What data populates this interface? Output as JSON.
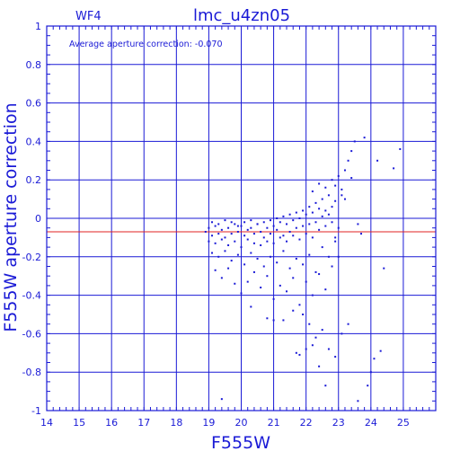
{
  "chart_data": {
    "type": "scatter",
    "title": "lmc_u4zn05",
    "corner_label": "WF4",
    "annotation": "Average aperture correction:  -0.070",
    "xlabel": "F555W",
    "ylabel": "F555W  aperture  correction",
    "xlim": [
      14,
      26
    ],
    "ylim": [
      -1,
      1
    ],
    "x_ticks": [
      "14",
      "15",
      "16",
      "17",
      "18",
      "19",
      "20",
      "21",
      "22",
      "23",
      "24",
      "25"
    ],
    "y_ticks": [
      "1",
      "0.8",
      "0.6",
      "0.4",
      "0.2",
      "0",
      "-0.2",
      "-0.4",
      "-0.6",
      "-0.8",
      "-1"
    ],
    "grid": true,
    "average_correction": -0.07,
    "reference_line": 0,
    "colors": {
      "axes": "#1a1ad6",
      "points": "#1a1ad6",
      "average_line": "#e02020"
    },
    "points": [
      [
        18.9,
        -0.07
      ],
      [
        19.0,
        -0.05
      ],
      [
        19.1,
        -0.09
      ],
      [
        19.2,
        -0.04
      ],
      [
        19.3,
        -0.08
      ],
      [
        19.4,
        -0.06
      ],
      [
        19.5,
        -0.1
      ],
      [
        19.6,
        -0.05
      ],
      [
        19.7,
        -0.08
      ],
      [
        19.8,
        -0.03
      ],
      [
        19.9,
        -0.07
      ],
      [
        20.0,
        -0.04
      ],
      [
        20.1,
        -0.09
      ],
      [
        20.2,
        -0.06
      ],
      [
        20.3,
        -0.05
      ],
      [
        20.4,
        -0.08
      ],
      [
        20.5,
        -0.03
      ],
      [
        20.6,
        -0.07
      ],
      [
        20.7,
        -0.1
      ],
      [
        20.8,
        -0.05
      ],
      [
        20.9,
        -0.08
      ],
      [
        21.0,
        -0.04
      ],
      [
        21.1,
        -0.06
      ],
      [
        21.2,
        -0.02
      ],
      [
        21.3,
        -0.09
      ],
      [
        21.4,
        -0.03
      ],
      [
        21.5,
        -0.07
      ],
      [
        21.6,
        -0.01
      ],
      [
        21.7,
        -0.05
      ],
      [
        21.8,
        0.0
      ],
      [
        21.9,
        -0.04
      ],
      [
        22.0,
        0.02
      ],
      [
        22.1,
        -0.03
      ],
      [
        22.2,
        0.03
      ],
      [
        22.3,
        -0.02
      ],
      [
        22.4,
        0.05
      ],
      [
        22.5,
        0.01
      ],
      [
        22.6,
        0.04
      ],
      [
        22.7,
        0.02
      ],
      [
        22.8,
        0.06
      ],
      [
        19.0,
        -0.12
      ],
      [
        19.2,
        -0.13
      ],
      [
        19.4,
        -0.11
      ],
      [
        19.6,
        -0.14
      ],
      [
        19.8,
        -0.12
      ],
      [
        20.0,
        -0.15
      ],
      [
        20.2,
        -0.11
      ],
      [
        20.4,
        -0.13
      ],
      [
        20.6,
        -0.14
      ],
      [
        20.8,
        -0.12
      ],
      [
        21.0,
        -0.13
      ],
      [
        21.2,
        -0.1
      ],
      [
        21.4,
        -0.12
      ],
      [
        21.6,
        -0.09
      ],
      [
        21.8,
        -0.11
      ],
      [
        22.0,
        -0.08
      ],
      [
        22.2,
        -0.1
      ],
      [
        22.4,
        -0.06
      ],
      [
        22.6,
        -0.04
      ],
      [
        22.8,
        -0.02
      ],
      [
        19.1,
        -0.02
      ],
      [
        19.3,
        -0.03
      ],
      [
        19.5,
        -0.01
      ],
      [
        19.7,
        -0.02
      ],
      [
        19.9,
        -0.04
      ],
      [
        20.1,
        -0.02
      ],
      [
        20.3,
        -0.01
      ],
      [
        20.5,
        -0.03
      ],
      [
        20.7,
        -0.02
      ],
      [
        20.9,
        -0.01
      ],
      [
        21.1,
        0.0
      ],
      [
        21.3,
        0.01
      ],
      [
        21.5,
        0.02
      ],
      [
        21.7,
        0.03
      ],
      [
        21.9,
        0.04
      ],
      [
        22.1,
        0.06
      ],
      [
        22.3,
        0.08
      ],
      [
        22.5,
        0.1
      ],
      [
        22.7,
        0.12
      ],
      [
        22.9,
        0.09
      ],
      [
        19.1,
        -0.18
      ],
      [
        19.3,
        -0.2
      ],
      [
        19.5,
        -0.17
      ],
      [
        19.7,
        -0.22
      ],
      [
        19.9,
        -0.19
      ],
      [
        20.1,
        -0.24
      ],
      [
        20.3,
        -0.18
      ],
      [
        20.5,
        -0.21
      ],
      [
        20.7,
        -0.25
      ],
      [
        20.9,
        -0.2
      ],
      [
        21.1,
        -0.23
      ],
      [
        21.3,
        -0.17
      ],
      [
        21.5,
        -0.26
      ],
      [
        21.7,
        -0.21
      ],
      [
        21.9,
        -0.24
      ],
      [
        22.1,
        -0.19
      ],
      [
        22.3,
        -0.28
      ],
      [
        22.5,
        -0.15
      ],
      [
        22.7,
        -0.2
      ],
      [
        22.9,
        -0.12
      ],
      [
        19.2,
        -0.27
      ],
      [
        19.4,
        -0.31
      ],
      [
        19.6,
        -0.26
      ],
      [
        19.8,
        -0.34
      ],
      [
        20.0,
        -0.39
      ],
      [
        20.2,
        -0.33
      ],
      [
        20.4,
        -0.28
      ],
      [
        20.6,
        -0.36
      ],
      [
        20.8,
        -0.3
      ],
      [
        21.0,
        -0.42
      ],
      [
        21.2,
        -0.35
      ],
      [
        21.4,
        -0.38
      ],
      [
        21.6,
        -0.31
      ],
      [
        21.8,
        -0.45
      ],
      [
        22.0,
        -0.33
      ],
      [
        22.2,
        -0.4
      ],
      [
        22.4,
        -0.29
      ],
      [
        22.6,
        -0.37
      ],
      [
        22.8,
        -0.25
      ],
      [
        23.0,
        -0.2
      ],
      [
        20.3,
        -0.46
      ],
      [
        20.8,
        -0.52
      ],
      [
        21.0,
        -0.53
      ],
      [
        21.3,
        -0.53
      ],
      [
        21.6,
        -0.48
      ],
      [
        21.9,
        -0.5
      ],
      [
        22.1,
        -0.55
      ],
      [
        22.3,
        -0.62
      ],
      [
        22.5,
        -0.58
      ],
      [
        22.7,
        -0.68
      ],
      [
        21.7,
        -0.7
      ],
      [
        21.8,
        -0.71
      ],
      [
        22.0,
        -0.68
      ],
      [
        22.2,
        -0.66
      ],
      [
        22.4,
        -0.77
      ],
      [
        22.6,
        -0.87
      ],
      [
        22.9,
        -0.72
      ],
      [
        23.1,
        -0.6
      ],
      [
        23.3,
        -0.55
      ],
      [
        22.2,
        0.14
      ],
      [
        22.4,
        0.18
      ],
      [
        22.6,
        0.16
      ],
      [
        22.8,
        0.2
      ],
      [
        22.9,
        0.17
      ],
      [
        23.0,
        0.22
      ],
      [
        23.1,
        0.12
      ],
      [
        23.2,
        0.25
      ],
      [
        23.3,
        0.3
      ],
      [
        23.4,
        0.35
      ],
      [
        23.5,
        0.4
      ],
      [
        23.8,
        0.42
      ],
      [
        24.2,
        0.3
      ],
      [
        23.1,
        0.15
      ],
      [
        22.9,
        -0.1
      ],
      [
        23.0,
        -0.05
      ],
      [
        23.2,
        0.1
      ],
      [
        23.6,
        -0.03
      ],
      [
        23.7,
        -0.08
      ],
      [
        24.1,
        -0.73
      ],
      [
        24.3,
        -0.69
      ],
      [
        23.9,
        -0.87
      ],
      [
        24.0,
        -0.8
      ],
      [
        24.4,
        -0.26
      ],
      [
        23.6,
        -0.95
      ],
      [
        19.4,
        -0.94
      ],
      [
        24.7,
        0.26
      ],
      [
        24.9,
        0.36
      ],
      [
        23.4,
        0.21
      ]
    ]
  }
}
